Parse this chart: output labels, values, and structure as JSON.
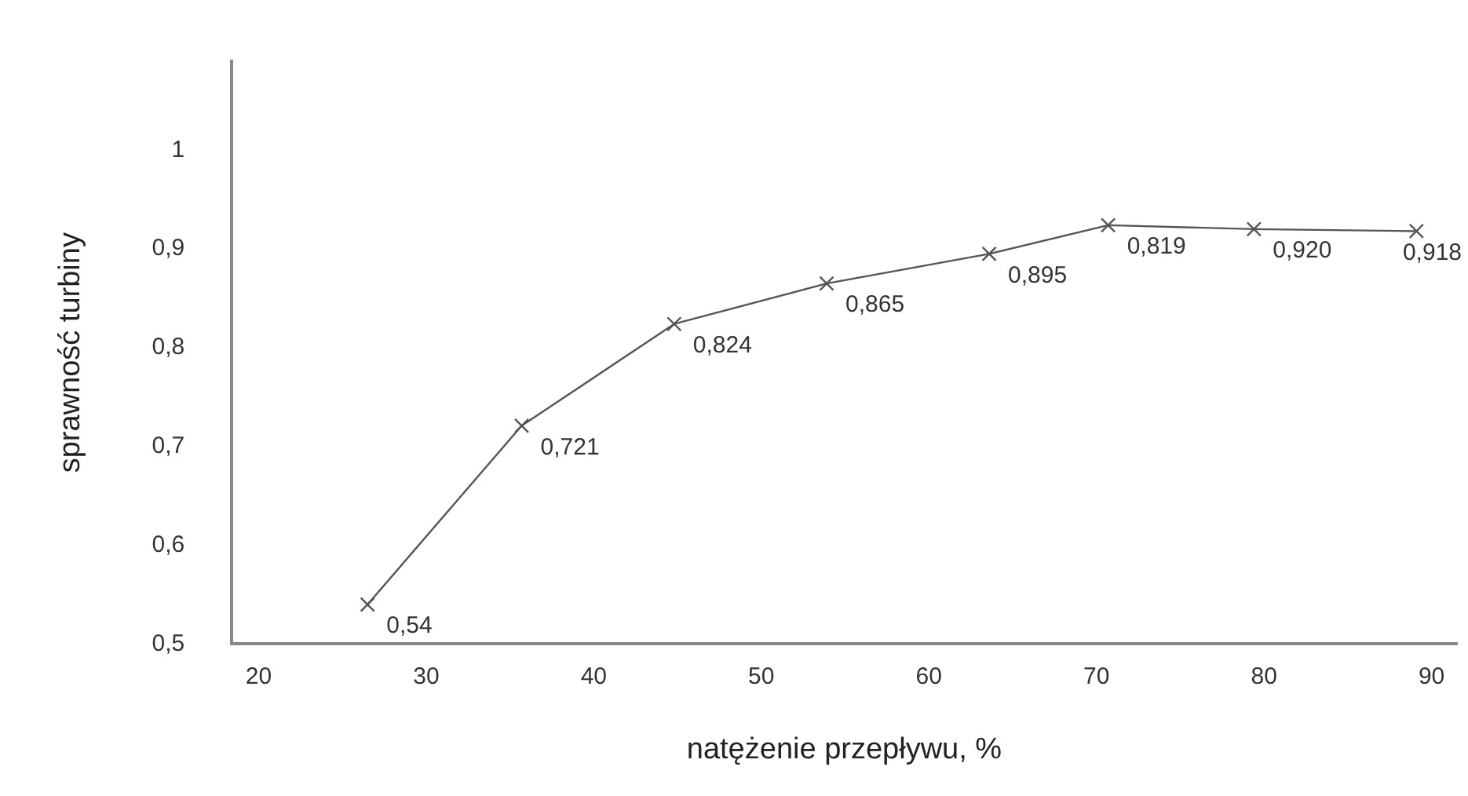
{
  "chart_data": {
    "type": "line",
    "xlabel": "natężenie przepływu, %",
    "ylabel": "sprawność turbiny",
    "x": [
      26.5,
      35.7,
      44.8,
      53.9,
      63.6,
      70.7,
      79.4,
      89.1
    ],
    "series": [
      {
        "color": "#555555",
        "values": [
          0.54,
          0.721,
          0.824,
          0.865,
          0.895,
          0.924,
          0.92,
          0.918
        ],
        "value_labels": [
          "0,54",
          "0,721",
          "0,824",
          "0,865",
          "0,895",
          null,
          "0,920",
          "0,918"
        ]
      }
    ],
    "annotations": [
      {
        "text": "0,819",
        "x": 70.7,
        "y": 0.924
      }
    ],
    "xlim": [
      18.4,
      91.5
    ],
    "xticks": [
      20,
      30,
      40,
      50,
      60,
      70,
      80,
      90
    ],
    "ylim": [
      0.5,
      1.09
    ],
    "yticks": [
      {
        "value": 0.5,
        "label": "0,5"
      },
      {
        "value": 0.6,
        "label": "0,6"
      },
      {
        "value": 0.7,
        "label": "0,7"
      },
      {
        "value": 0.8,
        "label": "0,8"
      },
      {
        "value": 0.9,
        "label": "0,9"
      },
      {
        "value": 1,
        "label": "1"
      }
    ],
    "grid": false,
    "legend": false,
    "marker": "cross",
    "line_style": "solid"
  }
}
